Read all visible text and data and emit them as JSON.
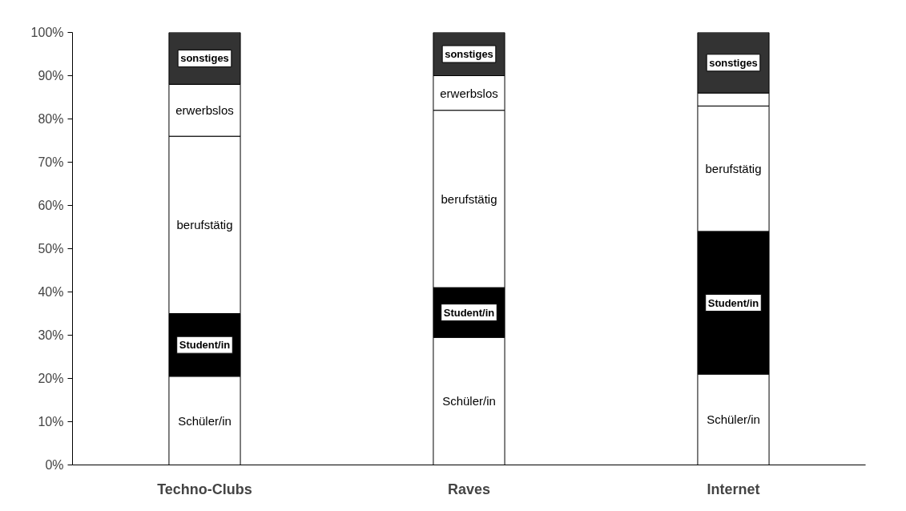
{
  "chart_data": {
    "type": "bar",
    "stacked": true,
    "categories": [
      "Techno-Clubs",
      "Raves",
      "Internet"
    ],
    "series": [
      {
        "name": "Schüler/in",
        "color": "#ffffff",
        "values": [
          20.5,
          29.5,
          21
        ]
      },
      {
        "name": "Student/in",
        "color": "#000000",
        "values": [
          14.5,
          11.5,
          33
        ]
      },
      {
        "name": "berufstätig",
        "color": "#ffffff",
        "values": [
          41,
          41,
          29
        ]
      },
      {
        "name": "erwerbslos",
        "color": "#ffffff",
        "values": [
          12,
          8,
          3
        ]
      },
      {
        "name": "sonstiges",
        "color": "#333333",
        "values": [
          12,
          10,
          14
        ]
      }
    ],
    "ylim": [
      0,
      100
    ],
    "yticks": [
      {
        "value": 0,
        "label": "0%"
      },
      {
        "value": 10,
        "label": "10%"
      },
      {
        "value": 20,
        "label": "20%"
      },
      {
        "value": 30,
        "label": "30%"
      },
      {
        "value": 40,
        "label": "40%"
      },
      {
        "value": 50,
        "label": "50%"
      },
      {
        "value": 60,
        "label": "60%"
      },
      {
        "value": 70,
        "label": "70%"
      },
      {
        "value": 80,
        "label": "80%"
      },
      {
        "value": 90,
        "label": "90%"
      },
      {
        "value": 100,
        "label": "100%"
      }
    ],
    "grid": false
  }
}
